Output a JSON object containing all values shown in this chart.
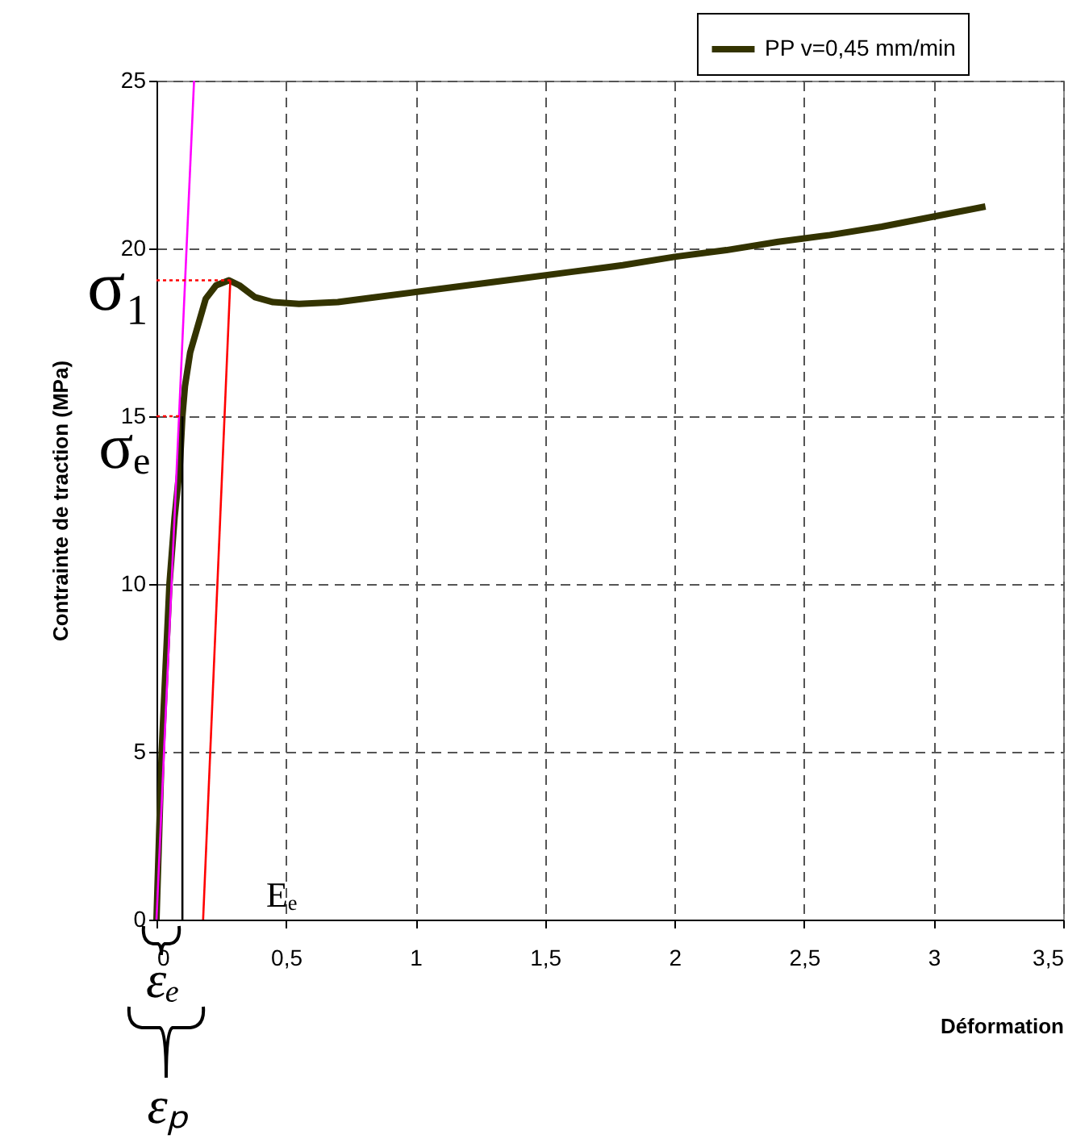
{
  "chart_data": {
    "type": "line",
    "xlabel": "Déformation",
    "ylabel": "Contrainte de traction (MPa)",
    "series": [
      {
        "name": "PP v=0,45 mm/min",
        "color": "#333300",
        "x": [
          0,
          0.01,
          0.02,
          0.035,
          0.05,
          0.07,
          0.09,
          0.1,
          0.11,
          0.13,
          0.16,
          0.19,
          0.23,
          0.28,
          0.32,
          0.38,
          0.45,
          0.55,
          0.7,
          0.85,
          1.0,
          1.2,
          1.4,
          1.6,
          1.8,
          2.0,
          2.2,
          2.4,
          2.6,
          2.8,
          3.0,
          3.1,
          3.2
        ],
        "values": [
          0,
          2.5,
          5,
          7.5,
          10,
          12,
          13.5,
          15,
          15.9,
          16.9,
          17.7,
          18.5,
          18.9,
          19.05,
          18.9,
          18.55,
          18.4,
          18.35,
          18.4,
          18.55,
          18.7,
          18.9,
          19.1,
          19.3,
          19.5,
          19.75,
          19.95,
          20.2,
          20.4,
          20.65,
          20.95,
          21.1,
          21.25
        ]
      },
      {
        "type": "line",
        "color": "#ff00ff",
        "x": [
          0,
          0.145
        ],
        "values": [
          0,
          25
        ]
      },
      {
        "type": "line",
        "color": "#ff0000",
        "x": [
          0.18,
          0.285
        ],
        "values": [
          0,
          19.05
        ]
      },
      {
        "type": "line",
        "color": "#000000",
        "x": [
          0.1,
          0.1
        ],
        "values": [
          0,
          15
        ]
      },
      {
        "type": "line",
        "color": "#ff0000",
        "line_style": "dotted",
        "x": [
          0,
          0.285
        ],
        "values": [
          19.05,
          19.05
        ]
      },
      {
        "type": "line",
        "color": "#ff0000",
        "line_style": "dotted",
        "x": [
          0,
          0.1
        ],
        "values": [
          15,
          15
        ]
      }
    ],
    "xlim": [
      0,
      3.5
    ],
    "xticks": [
      0,
      {
        "value": 0.5,
        "label": "0,5"
      },
      1,
      {
        "value": 1.5,
        "label": "1,5"
      },
      2,
      {
        "value": 2.5,
        "label": "2,5"
      },
      3,
      {
        "value": 3.5,
        "label": "3,5"
      }
    ],
    "ylim": [
      0,
      25
    ],
    "yticks": [
      0,
      5,
      10,
      15,
      20,
      25
    ],
    "grid": true,
    "legend": "top right",
    "line_style": "solid",
    "marker": "none",
    "annotations": [
      {
        "text": "σ₁",
        "x": 0,
        "y": 19
      },
      {
        "text": "σₑ",
        "x": 0,
        "y": 15
      },
      "Eₑ",
      "εₑ",
      "εₚ"
    ]
  }
}
